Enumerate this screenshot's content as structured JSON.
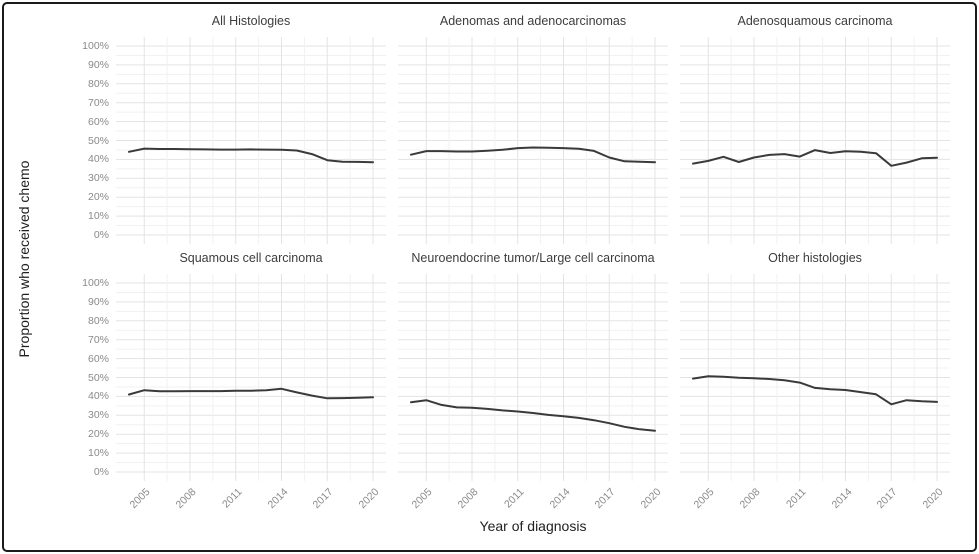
{
  "figure": {
    "type": "faceted-line-chart",
    "facet_rows": 2,
    "facet_cols": 3
  },
  "chart_data": {
    "type": "line",
    "title": "",
    "xlabel": "Year of diagnosis",
    "ylabel": "Proportion who received chemo",
    "x": [
      2004,
      2005,
      2006,
      2007,
      2008,
      2009,
      2010,
      2011,
      2012,
      2013,
      2014,
      2015,
      2016,
      2017,
      2018,
      2019,
      2020
    ],
    "x_tick_labels": [
      "2005",
      "2008",
      "2011",
      "2014",
      "2017",
      "2020"
    ],
    "x_tick_years": [
      2005,
      2008,
      2011,
      2014,
      2017,
      2020
    ],
    "y_tick_labels": [
      "100%",
      "90%",
      "80%",
      "70%",
      "60%",
      "50%",
      "40%",
      "30%",
      "20%",
      "10%",
      "0%"
    ],
    "y_tick_values": [
      100,
      90,
      80,
      70,
      60,
      50,
      40,
      30,
      20,
      10,
      0
    ],
    "ylim": [
      0,
      100
    ],
    "grid": "major and minor, light gray on white",
    "legend": "none",
    "line_color": "#3a3a3a",
    "grid_major_color": "#e3e3e3",
    "grid_minor_color": "#f1f1f1",
    "panels": [
      {
        "title": "All Histologies",
        "values": [
          44.0,
          45.7,
          45.5,
          45.5,
          45.4,
          45.3,
          45.2,
          45.2,
          45.3,
          45.2,
          45.1,
          44.7,
          42.8,
          39.6,
          38.8,
          38.7,
          38.5
        ]
      },
      {
        "title": "Adenomas and adenocarcinomas",
        "values": [
          42.5,
          44.4,
          44.4,
          44.2,
          44.2,
          44.6,
          45.1,
          46.0,
          46.3,
          46.2,
          46.0,
          45.6,
          44.5,
          41.0,
          39.0,
          38.8,
          38.5
        ]
      },
      {
        "title": "Adenosquamous carcinoma",
        "values": [
          37.8,
          39.2,
          41.4,
          38.6,
          41.0,
          42.4,
          42.8,
          41.5,
          44.9,
          43.4,
          44.3,
          44.0,
          43.3,
          36.6,
          38.3,
          40.6,
          40.9
        ]
      },
      {
        "title": "Squamous cell carcinoma",
        "values": [
          41.0,
          43.3,
          42.7,
          42.7,
          42.8,
          42.8,
          42.8,
          43.0,
          43.0,
          43.3,
          44.0,
          42.1,
          40.4,
          39.0,
          39.1,
          39.3,
          39.5
        ]
      },
      {
        "title": "Neuroendocrine tumor/Large cell carcinoma",
        "values": [
          36.9,
          38.0,
          35.5,
          34.2,
          34.0,
          33.4,
          32.6,
          32.0,
          31.2,
          30.2,
          29.5,
          28.6,
          27.4,
          25.8,
          23.9,
          22.6,
          21.8
        ]
      },
      {
        "title": "Other histologies",
        "values": [
          49.4,
          50.7,
          50.4,
          49.9,
          49.6,
          49.2,
          48.5,
          47.3,
          44.5,
          43.8,
          43.4,
          42.3,
          41.1,
          35.8,
          38.0,
          37.4,
          37.1
        ]
      }
    ]
  }
}
